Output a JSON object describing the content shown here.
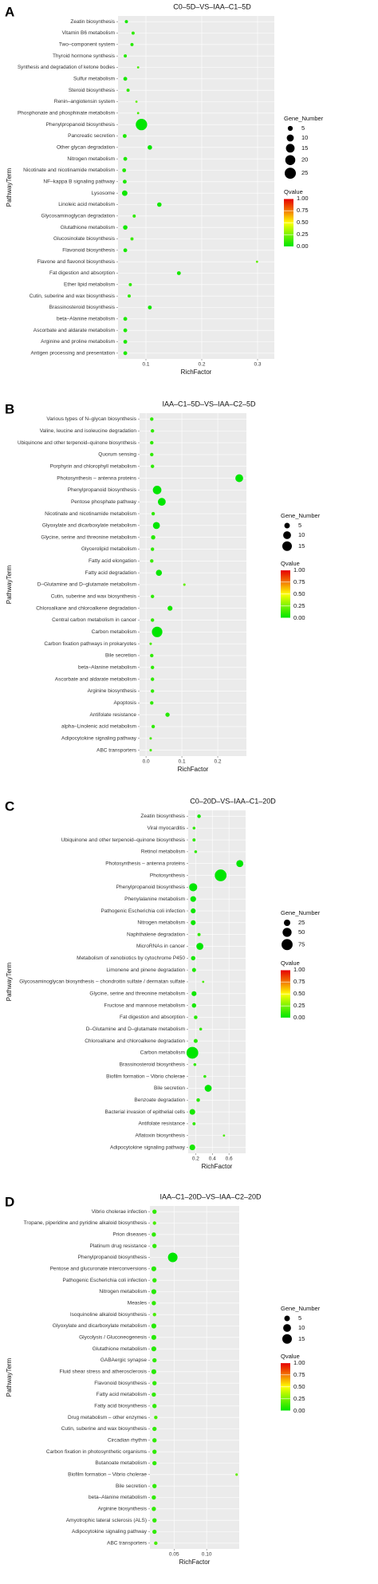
{
  "chart_data": [
    {
      "type": "bubble",
      "panel": "A",
      "title": "C0–5D–VS–IAA–C1–5D",
      "x_label": "RichFactor",
      "y_label": "PathwayTerm",
      "size_title": "Gene_Number",
      "color_title": "Qvalue",
      "grid": true,
      "categories": [
        "Zeatin biosynthesis",
        "Vitamin B6 metabolism",
        "Two–component system",
        "Thyroid hormone synthesis",
        "Synthesis and degradation of ketone bodies",
        "Sulfur metabolism",
        "Steroid biosynthesis",
        "Renin–angiotensin system",
        "Phosphonate and phosphinate metabolism",
        "Phenylpropanoid biosynthesis",
        "Pancreatic secretion",
        "Other glycan degradation",
        "Nitrogen metabolism",
        "Nicotinate and nicotinamide metabolism",
        "NF–kappa B signaling pathway",
        "Lysosome",
        "Linoleic acid metabolism",
        "Glycosaminoglycan degradation",
        "Glutathione metabolism",
        "Glucosinolate biosynthesis",
        "Flavonoid biosynthesis",
        "Flavone and flavonol biosynthesis",
        "Fat digestion and absorption",
        "Ether lipid metabolism",
        "Cutin, suberine and wax biosynthesis",
        "Brassinosteroid biosynthesis",
        "beta–Alanine metabolism",
        "Ascorbate and aldarate metabolism",
        "Arginine and proline metabolism",
        "Antigen processing and presentation"
      ],
      "values": [
        0.065,
        0.077,
        0.075,
        0.063,
        0.086,
        0.063,
        0.068,
        0.083,
        0.086,
        0.092,
        0.062,
        0.107,
        0.063,
        0.061,
        0.062,
        0.062,
        0.124,
        0.079,
        0.063,
        0.075,
        0.063,
        0.299,
        0.159,
        0.072,
        0.07,
        0.107,
        0.063,
        0.063,
        0.063,
        0.063
      ],
      "sizes": [
        2,
        2,
        2,
        2,
        1,
        3,
        2,
        1,
        1,
        26,
        3,
        4,
        3,
        3,
        3,
        6,
        4,
        2,
        4,
        2,
        3,
        1,
        3,
        2,
        2,
        3,
        3,
        3,
        3,
        3
      ],
      "qvalues": [
        0.05,
        0.1,
        0.08,
        0.08,
        0.15,
        0.05,
        0.1,
        0.2,
        0.15,
        0.0,
        0.06,
        0.02,
        0.06,
        0.07,
        0.06,
        0.03,
        0.04,
        0.1,
        0.04,
        0.12,
        0.05,
        0.2,
        0.05,
        0.1,
        0.1,
        0.04,
        0.06,
        0.06,
        0.06,
        0.06
      ],
      "xlim": [
        0.05,
        0.33
      ],
      "xticks": [
        0.1,
        0.2,
        0.3
      ],
      "size_legend": [
        5,
        10,
        15,
        20,
        25
      ],
      "color_ticks": [
        {
          "value": 0,
          "label": "0.00"
        },
        0.25,
        {
          "value": 0.5,
          "label": "0.50"
        },
        0.75,
        {
          "value": 1,
          "label": "1.00"
        }
      ]
    },
    {
      "type": "bubble",
      "panel": "B",
      "title": "IAA–C1–5D–VS–IAA–C2–5D",
      "x_label": "RichFactor",
      "y_label": "PathwayTerm",
      "size_title": "Gene_Number",
      "color_title": "Qvalue",
      "grid": true,
      "categories": [
        "Various types of N–glycan biosynthesis",
        "Valine, leucine and isoleucine degradation",
        "Ubiquinone and other terpenoid–quinone biosynthesis",
        "Quorum sensing",
        "Porphyrin and chlorophyll metabolism",
        "Photosynthesis – antenna proteins",
        "Phenylpropanoid biosynthesis",
        "Pentose phosphate pathway",
        "Nicotinate and nicotinamide metabolism",
        "Glyoxylate and dicarboxylate metabolism",
        "Glycine, serine and threonine metabolism",
        "Glycerolipid metabolism",
        "Fatty acid elongation",
        "Fatty acid degradation",
        "D–Glutamine and D–glutamate metabolism",
        "Cutin, suberine and wax biosynthesis",
        "Chloroalkane and chloroalkene degradation",
        "Central carbon metabolism in cancer",
        "Carbon metabolism",
        "Carbon fixation pathways in prokaryotes",
        "Bile secretion",
        "beta–Alanine metabolism",
        "Ascorbate and aldarate metabolism",
        "Arginine biosynthesis",
        "Apoptosis",
        "Antifolate resistance",
        "alpha–Linolenic acid metabolism",
        "Adipocytokine signaling pathway",
        "ABC transporters"
      ],
      "values": [
        0.016,
        0.018,
        0.016,
        0.016,
        0.018,
        0.26,
        0.031,
        0.044,
        0.02,
        0.029,
        0.02,
        0.018,
        0.016,
        0.036,
        0.107,
        0.018,
        0.067,
        0.018,
        0.031,
        0.013,
        0.016,
        0.018,
        0.018,
        0.018,
        0.016,
        0.06,
        0.02,
        0.013,
        0.013
      ],
      "sizes": [
        2,
        2,
        2,
        2,
        2,
        10,
        12,
        10,
        2,
        8,
        3,
        2,
        2,
        6,
        1,
        2,
        4,
        2,
        18,
        1,
        2,
        2,
        2,
        2,
        2,
        3,
        2,
        1,
        1
      ],
      "qvalues": [
        0.1,
        0.1,
        0.1,
        0.1,
        0.1,
        0.0,
        0.0,
        0.0,
        0.1,
        0.0,
        0.08,
        0.1,
        0.12,
        0.02,
        0.2,
        0.1,
        0.05,
        0.1,
        0.0,
        0.15,
        0.1,
        0.1,
        0.1,
        0.1,
        0.1,
        0.08,
        0.1,
        0.15,
        0.15
      ],
      "xlim": [
        -0.018,
        0.28
      ],
      "xticks": [
        {
          "value": 0,
          "label": "0.0"
        },
        0.1,
        0.2
      ],
      "size_legend": [
        5,
        10,
        15
      ],
      "color_ticks": [
        {
          "value": 0,
          "label": "0.00"
        },
        0.25,
        {
          "value": 0.5,
          "label": "0.50"
        },
        0.75,
        {
          "value": 1,
          "label": "1.00"
        }
      ]
    },
    {
      "type": "bubble",
      "panel": "C",
      "title": "C0–20D–VS–IAA–C1–20D",
      "x_label": "RichFactor",
      "y_label": "PathwayTerm",
      "size_title": "Gene_Number",
      "color_title": "Qvalue",
      "grid": true,
      "categories": [
        "Zeatin biosynthesis",
        "Viral myocarditis",
        "Ubiquinone and other terpenoid–quinone biosynthesis",
        "Retinol metabolism",
        "Photosynthesis – antenna proteins",
        "Photosynthesis",
        "Phenylpropanoid biosynthesis",
        "Phenylalanine metabolism",
        "Pathogenic Escherichia coli infection",
        "Nitrogen metabolism",
        "Naphthalene degradation",
        "MicroRNAs in cancer",
        "Metabolism of xenobiotics by cytochrome P450",
        "Limonene and pinene degradation",
        "Glycosaminoglycan biosynthesis – chondroitin sulfate / dermatan sulfate",
        "Glycine, serine and threonine metabolism",
        "Fructose and mannose metabolism",
        "Fat digestion and absorption",
        "D–Glutamine and D–glutamate metabolism",
        "Chloroalkane and chloroalkene degradation",
        "Carbon metabolism",
        "Brassinosteroid biosynthesis",
        "Biofilm formation – Vibrio cholerae",
        "Bile secretion",
        "Benzoate degradation",
        "Bacterial invasion of epithelial cells",
        "Antifolate resistance",
        "Aflatoxin biosynthesis",
        "Adipocytokine signaling pathway"
      ],
      "values": [
        0.24,
        0.18,
        0.18,
        0.2,
        0.73,
        0.5,
        0.17,
        0.17,
        0.17,
        0.17,
        0.24,
        0.25,
        0.17,
        0.18,
        0.29,
        0.18,
        0.18,
        0.2,
        0.26,
        0.2,
        0.16,
        0.19,
        0.31,
        0.35,
        0.23,
        0.16,
        0.18,
        0.54,
        0.16
      ],
      "sizes": [
        8,
        5,
        6,
        5,
        30,
        85,
        40,
        20,
        15,
        15,
        6,
        30,
        12,
        10,
        3,
        15,
        12,
        8,
        5,
        10,
        85,
        5,
        5,
        30,
        8,
        20,
        6,
        3,
        20
      ],
      "qvalues": [
        0.05,
        0.1,
        0.1,
        0.1,
        0.0,
        0.0,
        0.0,
        0.02,
        0.03,
        0.03,
        0.1,
        0.0,
        0.05,
        0.06,
        0.15,
        0.03,
        0.05,
        0.08,
        0.1,
        0.08,
        0.0,
        0.1,
        0.1,
        0.0,
        0.08,
        0.05,
        0.1,
        0.15,
        0.05
      ],
      "xlim": [
        0.11,
        0.8
      ],
      "xticks": [
        0.2,
        0.4,
        0.6
      ],
      "size_legend": [
        25,
        50,
        75
      ],
      "color_ticks": [
        {
          "value": 0,
          "label": "0.00"
        },
        0.25,
        {
          "value": 0.5,
          "label": "0.50"
        },
        0.75,
        {
          "value": 1,
          "label": "1.00"
        }
      ]
    },
    {
      "type": "bubble",
      "panel": "D",
      "title": "IAA–C1–20D–VS–IAA–C2–20D",
      "x_label": "RichFactor",
      "y_label": "PathwayTerm",
      "size_title": "Gene_Number",
      "color_title": "Qvalue",
      "grid": true,
      "categories": [
        "Vibrio cholerae infection",
        "Tropane, piperidine and pyridine alkaloid biosynthesis",
        "Prion diseases",
        "Platinum drug resistance",
        "Phenylpropanoid biosynthesis",
        "Pentose and glucuronate interconversions",
        "Pathogenic Escherichia coli infection",
        "Nitrogen metabolism",
        "Measles",
        "Isoquinoline alkaloid biosynthesis",
        "Glyoxylate and dicarboxylate metabolism",
        "Glycolysis / Gluconeogenesis",
        "Glutathione metabolism",
        "GABAergic synapse",
        "Fluid shear stress and atherosclerosis",
        "Flavonoid biosynthesis",
        "Fatty acid metabolism",
        "Fatty acid biosynthesis",
        "Drug metabolism – other enzymes",
        "Cutin, suberine and wax biosynthesis",
        "Circadian rhythm",
        "Carbon fixation in photosynthetic organisms",
        "Butanoate metabolism",
        "Biofilm formation – Vibrio cholerae",
        "Bile secretion",
        "beta–Alanine metabolism",
        "Arginine biosynthesis",
        "Amyotrophic lateral sclerosis (ALS)",
        "Adipocytokine signaling pathway",
        "ABC transporters"
      ],
      "values": [
        0.02,
        0.02,
        0.019,
        0.02,
        0.048,
        0.019,
        0.02,
        0.019,
        0.019,
        0.02,
        0.019,
        0.019,
        0.019,
        0.02,
        0.019,
        0.02,
        0.019,
        0.02,
        0.022,
        0.02,
        0.02,
        0.02,
        0.02,
        0.146,
        0.02,
        0.019,
        0.019,
        0.02,
        0.02,
        0.022
      ],
      "sizes": [
        3,
        2,
        3,
        3,
        15,
        4,
        3,
        4,
        3,
        2,
        4,
        4,
        4,
        3,
        4,
        3,
        3,
        3,
        2,
        3,
        3,
        3,
        3,
        1,
        3,
        3,
        3,
        3,
        3,
        2
      ],
      "qvalues": [
        0.1,
        0.15,
        0.1,
        0.1,
        0.0,
        0.08,
        0.1,
        0.08,
        0.1,
        0.15,
        0.08,
        0.08,
        0.08,
        0.1,
        0.08,
        0.1,
        0.1,
        0.1,
        0.15,
        0.1,
        0.1,
        0.1,
        0.1,
        0.2,
        0.1,
        0.1,
        0.1,
        0.1,
        0.1,
        0.15
      ],
      "xlim": [
        0.013,
        0.15
      ],
      "xticks": [
        0.05,
        {
          "value": 0.1,
          "label": "0.10"
        }
      ],
      "size_legend": [
        5,
        10,
        15
      ],
      "color_ticks": [
        {
          "value": 0,
          "label": "0.00"
        },
        0.25,
        {
          "value": 0.5,
          "label": "0.50"
        },
        0.75,
        {
          "value": 1,
          "label": "1.00"
        }
      ]
    }
  ]
}
